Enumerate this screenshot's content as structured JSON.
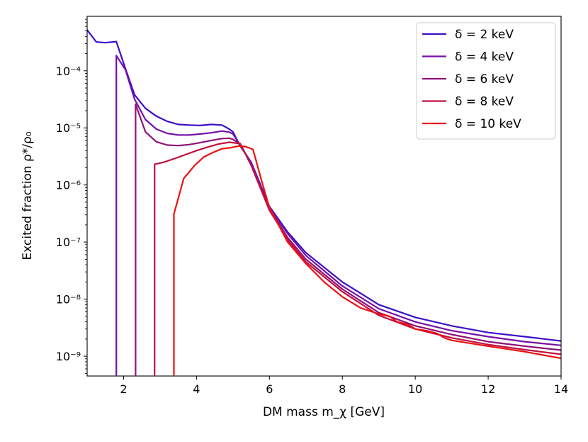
{
  "chart_data": {
    "type": "line",
    "xlabel": "DM mass m_χ [GeV]",
    "ylabel": "Excited fraction ρ*/ρ₀",
    "xlim": [
      1,
      14
    ],
    "ylim": [
      4.5e-10,
      0.0009
    ],
    "yscale": "log",
    "x_ticks": [
      2,
      4,
      6,
      8,
      10,
      12,
      14
    ],
    "x_tick_labels": [
      "2",
      "4",
      "6",
      "8",
      "10",
      "12",
      "14"
    ],
    "y_ticks": [
      1e-09,
      1e-08,
      1e-07,
      1e-06,
      1e-05,
      0.0001
    ],
    "y_tick_labels": [
      "10⁻⁹",
      "10⁻⁸",
      "10⁻⁷",
      "10⁻⁶",
      "10⁻⁵",
      "10⁻⁴"
    ],
    "legend_position": "top-right",
    "series": [
      {
        "name": "δ = 2 keV",
        "color": "#3d10c9",
        "x": [
          1.0,
          1.25,
          1.5,
          1.8,
          2.05,
          2.3,
          2.6,
          2.9,
          3.2,
          3.5,
          3.8,
          4.1,
          4.4,
          4.7,
          4.9,
          5.0,
          5.2,
          5.5,
          6.0,
          6.5,
          7.0,
          8.0,
          9.0,
          10.0,
          11.0,
          12.0,
          13.0,
          14.0
        ],
        "y": [
          0.00052,
          0.00032,
          0.00031,
          0.000325,
          0.00011,
          3.8e-05,
          2.2e-05,
          1.6e-05,
          1.3e-05,
          1.15e-05,
          1.12e-05,
          1.1e-05,
          1.15e-05,
          1.12e-05,
          9.5e-06,
          8.5e-06,
          4.8e-06,
          2.5e-06,
          4.2e-07,
          1.5e-07,
          6.5e-08,
          2e-08,
          8e-09,
          4.8e-09,
          3.4e-09,
          2.6e-09,
          2.2e-09,
          1.85e-09
        ]
      },
      {
        "name": "δ = 4 keV",
        "color": "#7510a8",
        "x": [
          1.8,
          1.8,
          2.05,
          2.3,
          2.6,
          2.9,
          3.2,
          3.5,
          3.8,
          4.1,
          4.4,
          4.7,
          4.9,
          5.0,
          5.2,
          5.5,
          6.0,
          6.5,
          7.0,
          8.0,
          9.0,
          10.0,
          11.0,
          12.0,
          13.0,
          14.0
        ],
        "y": [
          4.6e-10,
          0.000185,
          0.000105,
          3.2e-05,
          1.4e-05,
          9.5e-06,
          8e-06,
          7.5e-06,
          7.5e-06,
          7.8e-06,
          8.2e-06,
          8.8e-06,
          8.4e-06,
          7.8e-06,
          5e-06,
          2.4e-06,
          4e-07,
          1.4e-07,
          5.8e-08,
          1.7e-08,
          6.8e-09,
          4e-09,
          2.8e-09,
          2.2e-09,
          1.8e-09,
          1.55e-09
        ]
      },
      {
        "name": "δ = 6 keV",
        "color": "#90107a",
        "x": [
          2.33,
          2.33,
          2.6,
          2.9,
          3.2,
          3.5,
          3.8,
          4.1,
          4.4,
          4.7,
          4.9,
          5.0,
          5.2,
          5.5,
          6.0,
          6.5,
          7.0,
          8.0,
          9.0,
          10.0,
          11.0,
          12.0,
          13.0,
          14.0
        ],
        "y": [
          4.6e-10,
          2.6e-05,
          8.5e-06,
          5.7e-06,
          5e-06,
          4.9e-06,
          5.1e-06,
          5.5e-06,
          6e-06,
          6.5e-06,
          6.6e-06,
          6.3e-06,
          5.2e-06,
          2.3e-06,
          3.8e-07,
          1.2e-07,
          5e-08,
          1.5e-08,
          5.8e-09,
          3.4e-09,
          2.4e-09,
          1.8e-09,
          1.5e-09,
          1.28e-09
        ]
      },
      {
        "name": "δ = 8 keV",
        "color": "#c0103f",
        "x": [
          2.85,
          2.85,
          3.1,
          3.4,
          3.7,
          4.0,
          4.3,
          4.6,
          4.9,
          5.2,
          5.5,
          6.0,
          6.5,
          7.0,
          8.0,
          9.0,
          10.0,
          11.0,
          12.0,
          13.0,
          14.0
        ],
        "y": [
          4.6e-10,
          2.3e-06,
          2.5e-06,
          2.9e-06,
          3.4e-06,
          4e-06,
          4.6e-06,
          5.2e-06,
          5.6e-06,
          5.3e-06,
          2.2e-06,
          3.6e-07,
          1.1e-07,
          4.5e-08,
          1.35e-08,
          5.2e-09,
          3e-09,
          2.1e-09,
          1.6e-09,
          1.3e-09,
          1.08e-09
        ]
      },
      {
        "name": "δ = 10 keV",
        "color": "#ee1010",
        "x": [
          3.38,
          3.38,
          3.65,
          3.95,
          4.2,
          4.45,
          4.7,
          4.95,
          5.15,
          5.35,
          5.55,
          5.8,
          6.0,
          6.5,
          7.0,
          7.5,
          8.0,
          8.5,
          9.0,
          9.3,
          9.5,
          9.8,
          10.0,
          10.3,
          10.6,
          10.8,
          11.0,
          12.0,
          13.0,
          14.0
        ],
        "y": [
          4.6e-10,
          3.1e-07,
          1.3e-06,
          2.2e-06,
          3.1e-06,
          3.7e-06,
          4.3e-06,
          4.5e-06,
          4.8e-06,
          4.7e-06,
          4.2e-06,
          1.1e-06,
          4e-07,
          1e-07,
          4.2e-08,
          2e-08,
          1.1e-08,
          7e-09,
          5.5e-09,
          5e-09,
          4e-09,
          3.6e-09,
          3e-09,
          2.8e-09,
          2.5e-09,
          2.1e-09,
          1.9e-09,
          1.5e-09,
          1.2e-09,
          9.2e-10
        ]
      }
    ]
  }
}
